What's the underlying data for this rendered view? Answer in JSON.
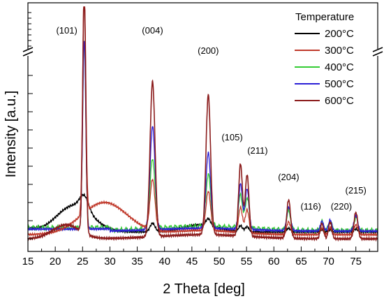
{
  "chart_data": {
    "type": "line",
    "title": "",
    "xlabel": "2 Theta [deg]",
    "ylabel": "Intensity [a.u.]",
    "xlim": [
      15,
      79
    ],
    "x_ticks": [
      "15",
      "20",
      "25",
      "30",
      "35",
      "40",
      "45",
      "50",
      "55",
      "60",
      "65",
      "70",
      "75"
    ],
    "y_axis": "broken",
    "legend": {
      "title": "Temperature",
      "placement": "top-right"
    },
    "series": [
      {
        "name": "200°C",
        "color": "#000000"
      },
      {
        "name": "300°C",
        "color": "#c0392b"
      },
      {
        "name": "400°C",
        "color": "#33cc33"
      },
      {
        "name": "500°C",
        "color": "#2a1fd6"
      },
      {
        "name": "600°C",
        "color": "#8b1c1c"
      }
    ],
    "peaks": [
      {
        "label": "(101)",
        "x": 25.3
      },
      {
        "label": "(004)",
        "x": 37.8
      },
      {
        "label": "(200)",
        "x": 48.0
      },
      {
        "label": "(105)",
        "x": 53.9
      },
      {
        "label": "(211)",
        "x": 55.1
      },
      {
        "label": "(204)",
        "x": 62.7
      },
      {
        "label": "(116)",
        "x": 68.8
      },
      {
        "label": "(220)",
        "x": 70.3
      },
      {
        "label": "(215)",
        "x": 75.0
      }
    ]
  }
}
